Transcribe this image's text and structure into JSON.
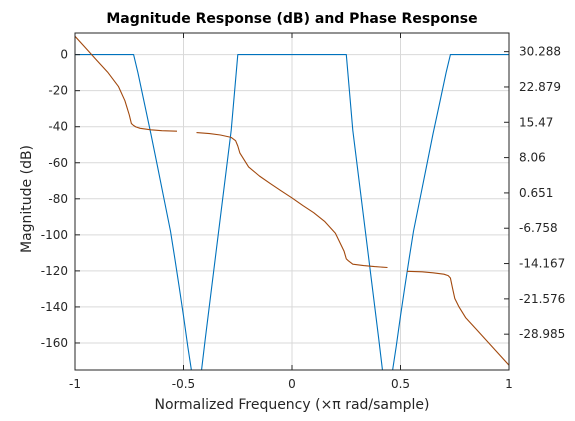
{
  "chart_data": {
    "type": "line",
    "title": "Magnitude Response (dB) and Phase Response",
    "xlabel": "Normalized Frequency (×π rad/sample)",
    "ylabel": "Magnitude (dB)",
    "ylabel_right": "",
    "xlim": [
      -1,
      1
    ],
    "ylim": [
      -175,
      12
    ],
    "ylim_right": [
      -36.5,
      34.2
    ],
    "grid": true,
    "x_ticks": [
      -1,
      -0.5,
      0,
      0.5,
      1
    ],
    "x_tick_labels": [
      "-1",
      "-0.5",
      "0",
      "0.5",
      "1"
    ],
    "y_ticks": [
      0,
      -20,
      -40,
      -60,
      -80,
      -100,
      -120,
      -140,
      -160
    ],
    "y_tick_labels": [
      "0",
      "-20",
      "-40",
      "-60",
      "-80",
      "-100",
      "-120",
      "-140",
      "-160"
    ],
    "y_right_ticks": [
      30.288,
      22.879,
      15.47,
      8.06,
      0.651,
      -6.758,
      -14.167,
      -21.576,
      -28.985
    ],
    "y_right_tick_labels": [
      "30.288",
      "22.879",
      "15.47",
      "8.06",
      "0.651",
      "-6.758",
      "-14.167",
      "-21.576",
      "-28.985"
    ],
    "colors": {
      "magnitude": "#0072BD",
      "phase": "#A2490E",
      "grid": "#d9d9d9",
      "axes": "#262626"
    },
    "series": [
      {
        "axis": "left",
        "color": "#0072BD",
        "x": [
          -1,
          -0.73,
          -0.71,
          -0.68,
          -0.65,
          -0.62,
          -0.59,
          -0.56,
          -0.54,
          -0.52,
          -0.5,
          -0.48,
          -0.46,
          -0.44,
          -0.42,
          -0.4,
          -0.37,
          -0.34,
          -0.31,
          -0.28,
          -0.25,
          0.25,
          0.28,
          0.31,
          0.34,
          0.37,
          0.4,
          0.42,
          0.44,
          0.46,
          0.48,
          0.5,
          0.52,
          0.54,
          0.56,
          0.59,
          0.62,
          0.65,
          0.68,
          0.71,
          0.73,
          1
        ],
        "y": [
          0,
          0,
          -10,
          -27,
          -44,
          -62,
          -80,
          -98,
          -113,
          -129,
          -145,
          -162,
          -178,
          -178,
          -178,
          -158,
          -129,
          -100,
          -71,
          -42,
          0,
          0,
          -42,
          -71,
          -100,
          -129,
          -158,
          -178,
          -178,
          -178,
          -162,
          -145,
          -129,
          -113,
          -98,
          -80,
          -62,
          -44,
          -27,
          -10,
          0,
          0
        ]
      },
      {
        "axis": "right",
        "color": "#A2490E",
        "segments": [
          {
            "x": [
              -1,
              -0.95,
              -0.9,
              -0.85,
              -0.8,
              -0.77,
              -0.75,
              -0.74,
              -0.73,
              -0.72,
              -0.7,
              -0.65,
              -0.6,
              -0.53
            ],
            "y": [
              33.5,
              31.0,
              28.5,
              26.0,
              23.0,
              20.0,
              17.0,
              15.2,
              14.8,
              14.5,
              14.2,
              13.9,
              13.7,
              13.6
            ]
          },
          {
            "x": [
              -0.44,
              -0.38,
              -0.33,
              -0.28,
              -0.26,
              -0.25,
              -0.24,
              -0.2,
              -0.15,
              -0.1,
              -0.05,
              0,
              0.05,
              0.1,
              0.15,
              0.2,
              0.24,
              0.25,
              0.26,
              0.28,
              0.33,
              0.38,
              0.44
            ],
            "y": [
              13.3,
              13.1,
              12.8,
              12.3,
              11.6,
              10.5,
              9.0,
              6.1,
              4.2,
              2.6,
              1.1,
              -0.4,
              -2.0,
              -3.5,
              -5.3,
              -7.8,
              -11.6,
              -13.2,
              -13.6,
              -14.3,
              -14.6,
              -14.8,
              -15.0
            ]
          },
          {
            "x": [
              0.53,
              0.6,
              0.65,
              0.7,
              0.72,
              0.73,
              0.74,
              0.75,
              0.77,
              0.8,
              0.85,
              0.9,
              0.95,
              1
            ],
            "y": [
              -15.8,
              -15.9,
              -16.1,
              -16.4,
              -16.7,
              -17.2,
              -19.4,
              -21.5,
              -23.3,
              -25.5,
              -28.0,
              -30.5,
              -33.0,
              -35.5
            ]
          }
        ]
      }
    ]
  }
}
